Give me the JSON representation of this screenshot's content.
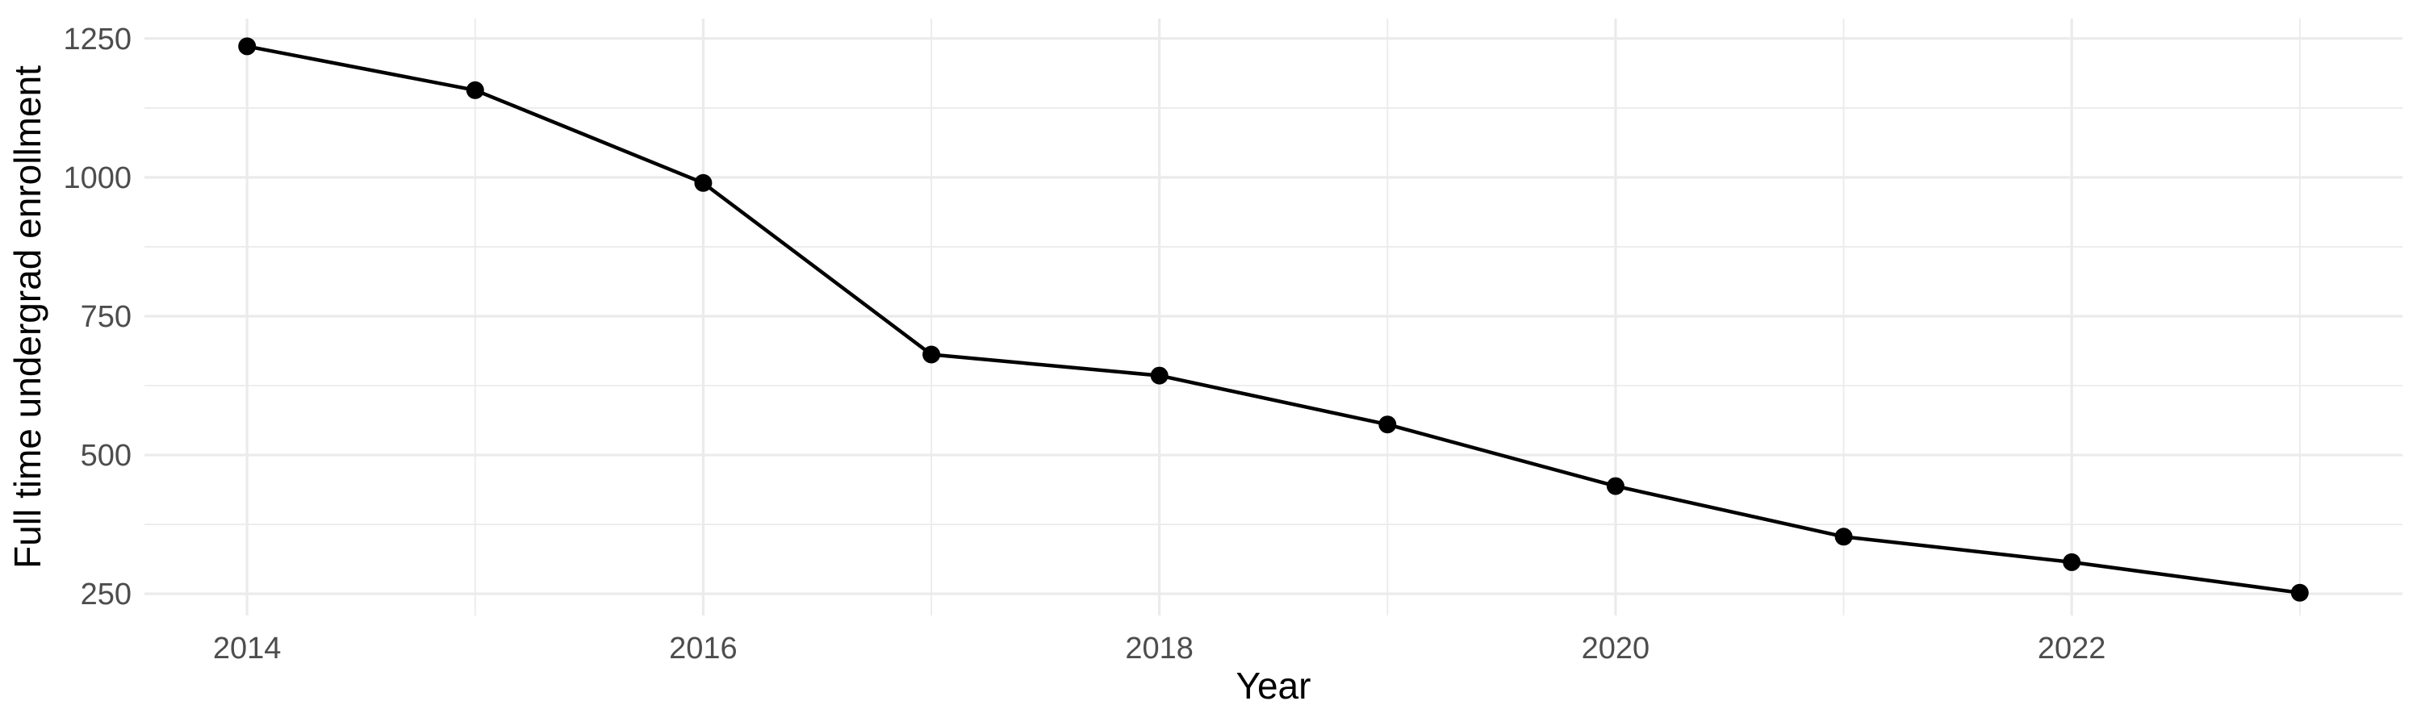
{
  "figure": {
    "background": "#FFFFFF",
    "panel_background": "#FFFFFF"
  },
  "chart_data": {
    "type": "line",
    "title": "",
    "xlabel": "Year",
    "ylabel": "Full time undergrad enrollment",
    "x": [
      2014,
      2015,
      2016,
      2017,
      2018,
      2019,
      2020,
      2021,
      2022,
      2023
    ],
    "series": [
      {
        "name": "Full time undergrad enrollment",
        "values": [
          1236,
          1157,
          990,
          681,
          643,
          555,
          444,
          353,
          307,
          252
        ]
      }
    ],
    "x_tick_labels": [
      "2014",
      "2016",
      "2018",
      "2020",
      "2022"
    ],
    "x_ticks": [
      2014,
      2016,
      2018,
      2020,
      2022
    ],
    "x_minor_gridlines": [
      2015,
      2017,
      2019,
      2021,
      2023
    ],
    "y_tick_labels": [
      "250",
      "500",
      "750",
      "1000",
      "1250"
    ],
    "y_ticks": [
      250,
      500,
      750,
      1000,
      1250
    ],
    "y_minor_gridlines": [
      375,
      625,
      875,
      1125
    ],
    "xlim": [
      2013.55,
      2023.45
    ],
    "ylim": [
      211,
      1286
    ],
    "grid": "major+minor",
    "legend": "none",
    "colors": {
      "line": "#000000",
      "point": "#000000",
      "grid_major": "#EBEBEB",
      "grid_minor": "#EBEBEB",
      "tick_label": "#4D4D4D",
      "axis_title": "#000000"
    }
  }
}
